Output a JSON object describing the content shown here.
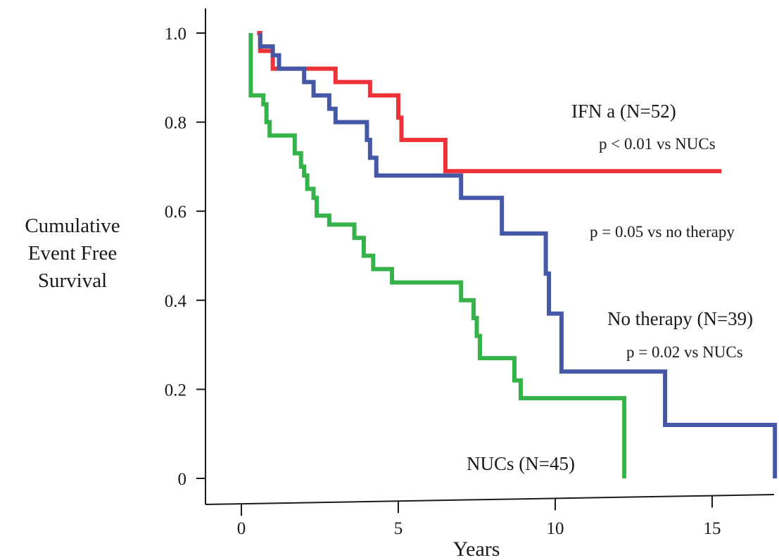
{
  "chart_data": {
    "type": "line",
    "step": true,
    "title": "",
    "xlabel": "Years",
    "ylabel_lines": [
      "Cumulative",
      "Event Free",
      "Survival"
    ],
    "xlim": [
      -2.3,
      17
    ],
    "ylim": [
      0,
      1.0
    ],
    "x_ticks": [
      0,
      5,
      10,
      15
    ],
    "y_ticks": [
      {
        "value": 1.0,
        "label": "1.0"
      },
      {
        "value": 0.8,
        "label": "0.8"
      },
      {
        "value": 0.6,
        "label": "0.6"
      },
      {
        "value": 0.4,
        "label": "0.4"
      },
      {
        "value": 0.2,
        "label": "0.2"
      },
      {
        "value": 0.0,
        "label": "0"
      }
    ],
    "grid": false,
    "legend": "none",
    "series": [
      {
        "name": "IFN a (N=52)",
        "color": "#ee3338",
        "x": [
          0.5,
          0.6,
          1.0,
          3.0,
          4.1,
          5.0,
          5.1,
          6.5,
          15.3
        ],
        "y": [
          1.0,
          0.96,
          0.92,
          0.89,
          0.86,
          0.81,
          0.76,
          0.69,
          0.69
        ]
      },
      {
        "name": "No therapy (N=39)",
        "color": "#4558a8",
        "x": [
          0.6,
          1.0,
          1.2,
          2.0,
          2.3,
          2.8,
          3.0,
          4.0,
          4.1,
          4.3,
          7.0,
          8.3,
          9.7,
          9.8,
          10.2,
          13.5,
          17.0
        ],
        "y": [
          0.97,
          0.95,
          0.92,
          0.89,
          0.86,
          0.83,
          0.8,
          0.76,
          0.72,
          0.68,
          0.63,
          0.55,
          0.46,
          0.37,
          0.24,
          0.12,
          0.0
        ]
      },
      {
        "name": "NUCs (N=45)",
        "color": "#35b34a",
        "x": [
          0.3,
          0.7,
          0.8,
          0.9,
          1.7,
          1.9,
          2.0,
          2.1,
          2.3,
          2.4,
          2.8,
          3.6,
          3.9,
          4.2,
          4.8,
          7.0,
          7.4,
          7.5,
          7.6,
          8.7,
          8.9,
          12.2,
          12.2
        ],
        "y": [
          0.86,
          0.84,
          0.8,
          0.77,
          0.73,
          0.7,
          0.68,
          0.65,
          0.63,
          0.59,
          0.57,
          0.54,
          0.5,
          0.47,
          0.44,
          0.4,
          0.36,
          0.32,
          0.27,
          0.22,
          0.18,
          0.18,
          0.0
        ]
      }
    ],
    "annotations": [
      {
        "id": "ifn-label",
        "text": "IFN a (N=52)"
      },
      {
        "id": "ifn-p",
        "text": "p < 0.01 vs NUCs"
      },
      {
        "id": "notherapy-p1",
        "text": "p = 0.05 vs no therapy"
      },
      {
        "id": "notherapy-label",
        "text": "No therapy (N=39)"
      },
      {
        "id": "notherapy-p2",
        "text": "p = 0.02 vs NUCs"
      },
      {
        "id": "nucs-label",
        "text": "NUCs (N=45)"
      }
    ]
  }
}
